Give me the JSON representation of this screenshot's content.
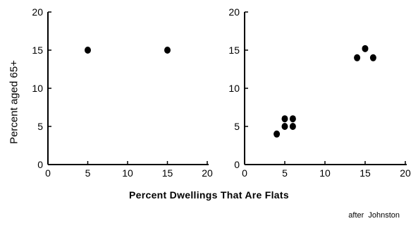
{
  "chart_data": [
    {
      "type": "scatter",
      "xlim": [
        0,
        20
      ],
      "ylim": [
        0,
        20
      ],
      "xticks": [
        0,
        5,
        10,
        15,
        20
      ],
      "yticks": [
        0,
        5,
        10,
        15,
        20
      ],
      "points": [
        {
          "x": 5,
          "y": 15
        },
        {
          "x": 15,
          "y": 15
        }
      ]
    },
    {
      "type": "scatter",
      "xlim": [
        0,
        20
      ],
      "ylim": [
        0,
        20
      ],
      "xticks": [
        0,
        5,
        10,
        15,
        20
      ],
      "yticks": [
        0,
        5,
        10,
        15,
        20
      ],
      "points": [
        {
          "x": 4,
          "y": 4
        },
        {
          "x": 5,
          "y": 5
        },
        {
          "x": 5,
          "y": 6
        },
        {
          "x": 6,
          "y": 5
        },
        {
          "x": 6,
          "y": 6
        },
        {
          "x": 14,
          "y": 14
        },
        {
          "x": 15,
          "y": 15.2
        },
        {
          "x": 16,
          "y": 14
        }
      ]
    }
  ],
  "xlabel": "Percent Dwellings That Are Flats",
  "ylabel": "Percent aged 65+",
  "credit": "after Johnston",
  "colors": {
    "ink": "#000000",
    "background": "#ffffff"
  }
}
